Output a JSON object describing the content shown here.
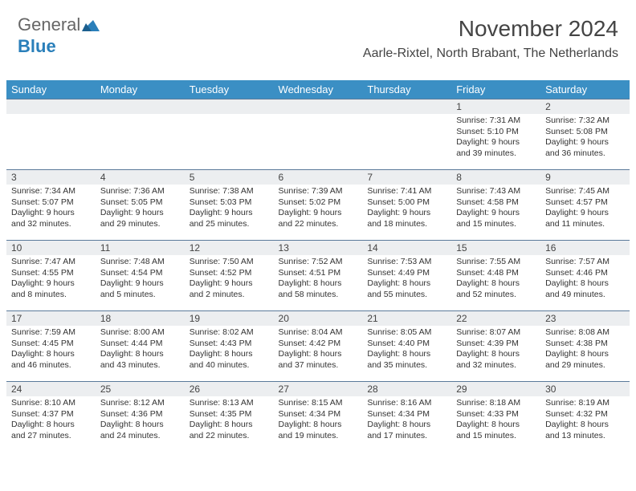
{
  "logo": {
    "text_a": "General",
    "text_b": "Blue"
  },
  "title": "November 2024",
  "subtitle": "Aarle-Rixtel, North Brabant, The Netherlands",
  "header_bg": "#3b8fc4",
  "header_fg": "#ffffff",
  "daynum_bg": "#eceef0",
  "row_border": "#5b7a9a",
  "day_headers": [
    "Sunday",
    "Monday",
    "Tuesday",
    "Wednesday",
    "Thursday",
    "Friday",
    "Saturday"
  ],
  "weeks": [
    [
      {
        "num": "",
        "lines": []
      },
      {
        "num": "",
        "lines": []
      },
      {
        "num": "",
        "lines": []
      },
      {
        "num": "",
        "lines": []
      },
      {
        "num": "",
        "lines": []
      },
      {
        "num": "1",
        "lines": [
          "Sunrise: 7:31 AM",
          "Sunset: 5:10 PM",
          "Daylight: 9 hours",
          "and 39 minutes."
        ]
      },
      {
        "num": "2",
        "lines": [
          "Sunrise: 7:32 AM",
          "Sunset: 5:08 PM",
          "Daylight: 9 hours",
          "and 36 minutes."
        ]
      }
    ],
    [
      {
        "num": "3",
        "lines": [
          "Sunrise: 7:34 AM",
          "Sunset: 5:07 PM",
          "Daylight: 9 hours",
          "and 32 minutes."
        ]
      },
      {
        "num": "4",
        "lines": [
          "Sunrise: 7:36 AM",
          "Sunset: 5:05 PM",
          "Daylight: 9 hours",
          "and 29 minutes."
        ]
      },
      {
        "num": "5",
        "lines": [
          "Sunrise: 7:38 AM",
          "Sunset: 5:03 PM",
          "Daylight: 9 hours",
          "and 25 minutes."
        ]
      },
      {
        "num": "6",
        "lines": [
          "Sunrise: 7:39 AM",
          "Sunset: 5:02 PM",
          "Daylight: 9 hours",
          "and 22 minutes."
        ]
      },
      {
        "num": "7",
        "lines": [
          "Sunrise: 7:41 AM",
          "Sunset: 5:00 PM",
          "Daylight: 9 hours",
          "and 18 minutes."
        ]
      },
      {
        "num": "8",
        "lines": [
          "Sunrise: 7:43 AM",
          "Sunset: 4:58 PM",
          "Daylight: 9 hours",
          "and 15 minutes."
        ]
      },
      {
        "num": "9",
        "lines": [
          "Sunrise: 7:45 AM",
          "Sunset: 4:57 PM",
          "Daylight: 9 hours",
          "and 11 minutes."
        ]
      }
    ],
    [
      {
        "num": "10",
        "lines": [
          "Sunrise: 7:47 AM",
          "Sunset: 4:55 PM",
          "Daylight: 9 hours",
          "and 8 minutes."
        ]
      },
      {
        "num": "11",
        "lines": [
          "Sunrise: 7:48 AM",
          "Sunset: 4:54 PM",
          "Daylight: 9 hours",
          "and 5 minutes."
        ]
      },
      {
        "num": "12",
        "lines": [
          "Sunrise: 7:50 AM",
          "Sunset: 4:52 PM",
          "Daylight: 9 hours",
          "and 2 minutes."
        ]
      },
      {
        "num": "13",
        "lines": [
          "Sunrise: 7:52 AM",
          "Sunset: 4:51 PM",
          "Daylight: 8 hours",
          "and 58 minutes."
        ]
      },
      {
        "num": "14",
        "lines": [
          "Sunrise: 7:53 AM",
          "Sunset: 4:49 PM",
          "Daylight: 8 hours",
          "and 55 minutes."
        ]
      },
      {
        "num": "15",
        "lines": [
          "Sunrise: 7:55 AM",
          "Sunset: 4:48 PM",
          "Daylight: 8 hours",
          "and 52 minutes."
        ]
      },
      {
        "num": "16",
        "lines": [
          "Sunrise: 7:57 AM",
          "Sunset: 4:46 PM",
          "Daylight: 8 hours",
          "and 49 minutes."
        ]
      }
    ],
    [
      {
        "num": "17",
        "lines": [
          "Sunrise: 7:59 AM",
          "Sunset: 4:45 PM",
          "Daylight: 8 hours",
          "and 46 minutes."
        ]
      },
      {
        "num": "18",
        "lines": [
          "Sunrise: 8:00 AM",
          "Sunset: 4:44 PM",
          "Daylight: 8 hours",
          "and 43 minutes."
        ]
      },
      {
        "num": "19",
        "lines": [
          "Sunrise: 8:02 AM",
          "Sunset: 4:43 PM",
          "Daylight: 8 hours",
          "and 40 minutes."
        ]
      },
      {
        "num": "20",
        "lines": [
          "Sunrise: 8:04 AM",
          "Sunset: 4:42 PM",
          "Daylight: 8 hours",
          "and 37 minutes."
        ]
      },
      {
        "num": "21",
        "lines": [
          "Sunrise: 8:05 AM",
          "Sunset: 4:40 PM",
          "Daylight: 8 hours",
          "and 35 minutes."
        ]
      },
      {
        "num": "22",
        "lines": [
          "Sunrise: 8:07 AM",
          "Sunset: 4:39 PM",
          "Daylight: 8 hours",
          "and 32 minutes."
        ]
      },
      {
        "num": "23",
        "lines": [
          "Sunrise: 8:08 AM",
          "Sunset: 4:38 PM",
          "Daylight: 8 hours",
          "and 29 minutes."
        ]
      }
    ],
    [
      {
        "num": "24",
        "lines": [
          "Sunrise: 8:10 AM",
          "Sunset: 4:37 PM",
          "Daylight: 8 hours",
          "and 27 minutes."
        ]
      },
      {
        "num": "25",
        "lines": [
          "Sunrise: 8:12 AM",
          "Sunset: 4:36 PM",
          "Daylight: 8 hours",
          "and 24 minutes."
        ]
      },
      {
        "num": "26",
        "lines": [
          "Sunrise: 8:13 AM",
          "Sunset: 4:35 PM",
          "Daylight: 8 hours",
          "and 22 minutes."
        ]
      },
      {
        "num": "27",
        "lines": [
          "Sunrise: 8:15 AM",
          "Sunset: 4:34 PM",
          "Daylight: 8 hours",
          "and 19 minutes."
        ]
      },
      {
        "num": "28",
        "lines": [
          "Sunrise: 8:16 AM",
          "Sunset: 4:34 PM",
          "Daylight: 8 hours",
          "and 17 minutes."
        ]
      },
      {
        "num": "29",
        "lines": [
          "Sunrise: 8:18 AM",
          "Sunset: 4:33 PM",
          "Daylight: 8 hours",
          "and 15 minutes."
        ]
      },
      {
        "num": "30",
        "lines": [
          "Sunrise: 8:19 AM",
          "Sunset: 4:32 PM",
          "Daylight: 8 hours",
          "and 13 minutes."
        ]
      }
    ]
  ]
}
